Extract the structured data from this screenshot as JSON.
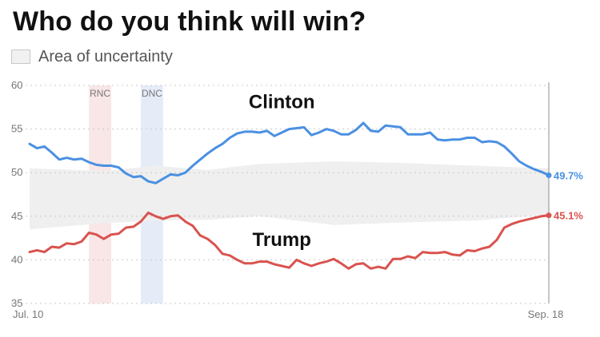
{
  "header": {
    "title": "Who do you think will win?"
  },
  "legend": {
    "label": "Area of uncertainty",
    "swatch_color": "#f1f1f1"
  },
  "chart_data": {
    "type": "line",
    "title": "Who do you think will win?",
    "xlabel": "",
    "ylabel": "",
    "ylim": [
      35,
      60
    ],
    "yticks": [
      35,
      40,
      45,
      50,
      55,
      60
    ],
    "x_range": [
      "2016-07-10",
      "2016-09-18"
    ],
    "x_tick_labels": [
      {
        "date": "2016-07-10",
        "label": "Jul. 10"
      },
      {
        "date": "2016-09-18",
        "label": "Sep. 18"
      }
    ],
    "grid": true,
    "bands": [
      {
        "label": "RNC",
        "start": "2016-07-18",
        "end": "2016-07-21",
        "color": "#f9e6e6"
      },
      {
        "label": "DNC",
        "start": "2016-07-25",
        "end": "2016-07-28",
        "color": "#e5ecf8"
      }
    ],
    "uncertainty_band": {
      "name": "Area of uncertainty",
      "color": "#efefef",
      "x": [
        "2016-07-10",
        "2016-07-20",
        "2016-07-27",
        "2016-08-03",
        "2016-08-10",
        "2016-08-20",
        "2016-08-30",
        "2016-09-08",
        "2016-09-18"
      ],
      "lower": [
        43.5,
        44.2,
        44.5,
        44.6,
        45.0,
        44.0,
        44.3,
        44.5,
        45.2
      ],
      "upper": [
        50.5,
        50.2,
        50.8,
        50.3,
        51.0,
        51.3,
        51.1,
        50.8,
        50.5
      ]
    },
    "series": [
      {
        "name": "Clinton",
        "color": "#4a90e2",
        "end_label": "49.7%",
        "label_at": {
          "date": "2016-08-13",
          "value": 57.4
        },
        "x": [
          "2016-07-10",
          "2016-07-11",
          "2016-07-12",
          "2016-07-13",
          "2016-07-14",
          "2016-07-15",
          "2016-07-16",
          "2016-07-17",
          "2016-07-18",
          "2016-07-19",
          "2016-07-20",
          "2016-07-21",
          "2016-07-22",
          "2016-07-23",
          "2016-07-24",
          "2016-07-25",
          "2016-07-26",
          "2016-07-27",
          "2016-07-28",
          "2016-07-29",
          "2016-07-30",
          "2016-07-31",
          "2016-08-01",
          "2016-08-02",
          "2016-08-03",
          "2016-08-04",
          "2016-08-05",
          "2016-08-06",
          "2016-08-07",
          "2016-08-08",
          "2016-08-09",
          "2016-08-10",
          "2016-08-11",
          "2016-08-12",
          "2016-08-13",
          "2016-08-14",
          "2016-08-15",
          "2016-08-16",
          "2016-08-17",
          "2016-08-18",
          "2016-08-19",
          "2016-08-20",
          "2016-08-21",
          "2016-08-22",
          "2016-08-23",
          "2016-08-24",
          "2016-08-25",
          "2016-08-26",
          "2016-08-27",
          "2016-08-28",
          "2016-08-29",
          "2016-08-30",
          "2016-08-31",
          "2016-09-01",
          "2016-09-02",
          "2016-09-03",
          "2016-09-04",
          "2016-09-05",
          "2016-09-06",
          "2016-09-07",
          "2016-09-08",
          "2016-09-09",
          "2016-09-10",
          "2016-09-11",
          "2016-09-12",
          "2016-09-13",
          "2016-09-14",
          "2016-09-15",
          "2016-09-16",
          "2016-09-17",
          "2016-09-18"
        ],
        "values": [
          53.3,
          52.8,
          53.0,
          52.3,
          51.5,
          51.7,
          51.5,
          51.6,
          51.2,
          50.9,
          50.8,
          50.8,
          50.6,
          49.9,
          49.5,
          49.6,
          49.0,
          48.8,
          49.3,
          49.8,
          49.7,
          50.0,
          50.8,
          51.5,
          52.2,
          52.8,
          53.3,
          54.0,
          54.5,
          54.7,
          54.7,
          54.6,
          54.8,
          54.2,
          54.6,
          55.0,
          55.1,
          55.2,
          54.3,
          54.6,
          55.0,
          54.8,
          54.4,
          54.4,
          54.9,
          55.7,
          54.8,
          54.7,
          55.4,
          55.3,
          55.2,
          54.4,
          54.4,
          54.4,
          54.6,
          53.8,
          53.7,
          53.8,
          53.8,
          54.0,
          54.0,
          53.5,
          53.6,
          53.5,
          53.0,
          52.2,
          51.3,
          50.8,
          50.4,
          50.1,
          49.7
        ]
      },
      {
        "name": "Trump",
        "color": "#d9534f",
        "end_label": "45.1%",
        "label_at": {
          "date": "2016-08-13",
          "value": 41.6
        },
        "x": [
          "2016-07-10",
          "2016-07-11",
          "2016-07-12",
          "2016-07-13",
          "2016-07-14",
          "2016-07-15",
          "2016-07-16",
          "2016-07-17",
          "2016-07-18",
          "2016-07-19",
          "2016-07-20",
          "2016-07-21",
          "2016-07-22",
          "2016-07-23",
          "2016-07-24",
          "2016-07-25",
          "2016-07-26",
          "2016-07-27",
          "2016-07-28",
          "2016-07-29",
          "2016-07-30",
          "2016-07-31",
          "2016-08-01",
          "2016-08-02",
          "2016-08-03",
          "2016-08-04",
          "2016-08-05",
          "2016-08-06",
          "2016-08-07",
          "2016-08-08",
          "2016-08-09",
          "2016-08-10",
          "2016-08-11",
          "2016-08-12",
          "2016-08-13",
          "2016-08-14",
          "2016-08-15",
          "2016-08-16",
          "2016-08-17",
          "2016-08-18",
          "2016-08-19",
          "2016-08-20",
          "2016-08-21",
          "2016-08-22",
          "2016-08-23",
          "2016-08-24",
          "2016-08-25",
          "2016-08-26",
          "2016-08-27",
          "2016-08-28",
          "2016-08-29",
          "2016-08-30",
          "2016-08-31",
          "2016-09-01",
          "2016-09-02",
          "2016-09-03",
          "2016-09-04",
          "2016-09-05",
          "2016-09-06",
          "2016-09-07",
          "2016-09-08",
          "2016-09-09",
          "2016-09-10",
          "2016-09-11",
          "2016-09-12",
          "2016-09-13",
          "2016-09-14",
          "2016-09-15",
          "2016-09-16",
          "2016-09-17",
          "2016-09-18"
        ],
        "values": [
          40.9,
          41.1,
          40.9,
          41.5,
          41.4,
          41.9,
          41.8,
          42.1,
          43.1,
          42.9,
          42.4,
          42.9,
          43.0,
          43.7,
          43.8,
          44.4,
          45.4,
          45.0,
          44.7,
          45.0,
          45.1,
          44.4,
          43.9,
          42.8,
          42.4,
          41.7,
          40.7,
          40.5,
          40.0,
          39.6,
          39.6,
          39.8,
          39.8,
          39.5,
          39.3,
          39.1,
          40.0,
          39.6,
          39.3,
          39.6,
          39.8,
          40.1,
          39.6,
          39.0,
          39.5,
          39.6,
          39.0,
          39.2,
          39.0,
          40.1,
          40.1,
          40.4,
          40.2,
          40.9,
          40.8,
          40.8,
          40.9,
          40.6,
          40.5,
          41.1,
          41.0,
          41.3,
          41.5,
          42.3,
          43.7,
          44.1,
          44.4,
          44.6,
          44.8,
          45.0,
          45.1
        ]
      }
    ],
    "current_marker": {
      "date": "2016-09-18",
      "color": "#8c8c8c"
    }
  }
}
